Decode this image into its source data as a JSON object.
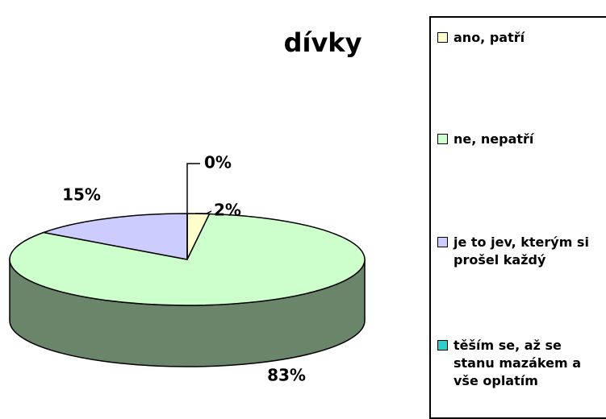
{
  "chart_data": {
    "type": "pie3d",
    "title": "dívky",
    "categories": [
      "ano, patří",
      "ne, nepatří",
      "je to jev, kterým si prošel každý",
      "těším se, až se stanu mazákem a vše oplatím"
    ],
    "values": [
      2,
      83,
      15,
      0
    ],
    "value_labels": [
      "2%",
      "83%",
      "15%",
      "0%"
    ],
    "colors": [
      "#FFFFCC",
      "#CCFFCC",
      "#CCCCFF",
      "#33CCCC"
    ],
    "legend": "right"
  }
}
